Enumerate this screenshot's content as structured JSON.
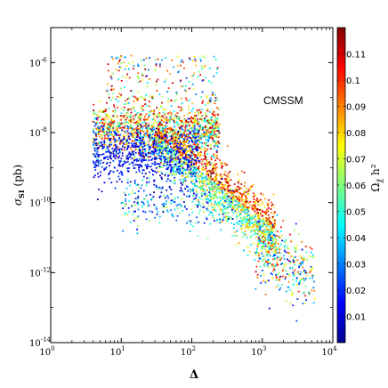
{
  "chart_data": {
    "type": "scatter",
    "xlabel": "Δ",
    "ylabel_main": "σ",
    "ylabel_sub": "SI",
    "ylabel_unit": " (pb)",
    "annotation": "CMSSM",
    "x_scale": "log",
    "y_scale": "log",
    "xlim": [
      1,
      10000
    ],
    "ylim": [
      1e-14,
      1e-05
    ],
    "x_ticks": [
      {
        "value": 1,
        "base": "10",
        "exp": "0"
      },
      {
        "value": 10,
        "base": "10",
        "exp": "1"
      },
      {
        "value": 100,
        "base": "10",
        "exp": "2"
      },
      {
        "value": 1000,
        "base": "10",
        "exp": "3"
      },
      {
        "value": 10000,
        "base": "10",
        "exp": "4"
      }
    ],
    "y_ticks": [
      {
        "value": 1e-14,
        "base": "10",
        "exp": "-14"
      },
      {
        "value": 1e-12,
        "base": "10",
        "exp": "-12"
      },
      {
        "value": 1e-10,
        "base": "10",
        "exp": "-10"
      },
      {
        "value": 1e-08,
        "base": "10",
        "exp": "-8"
      },
      {
        "value": 1e-06,
        "base": "10",
        "exp": "-6"
      }
    ],
    "colorbar": {
      "label": "Ω",
      "label_sub": "χ̃",
      "label_rest": " h²",
      "range": [
        0,
        0.12
      ],
      "ticks": [
        "0.01",
        "0.02",
        "0.03",
        "0.04",
        "0.05",
        "0.06",
        "0.07",
        "0.08",
        "0.09",
        "0.1",
        "0.11"
      ],
      "colormap": "jet"
    },
    "grid": false,
    "legend": "none"
  }
}
